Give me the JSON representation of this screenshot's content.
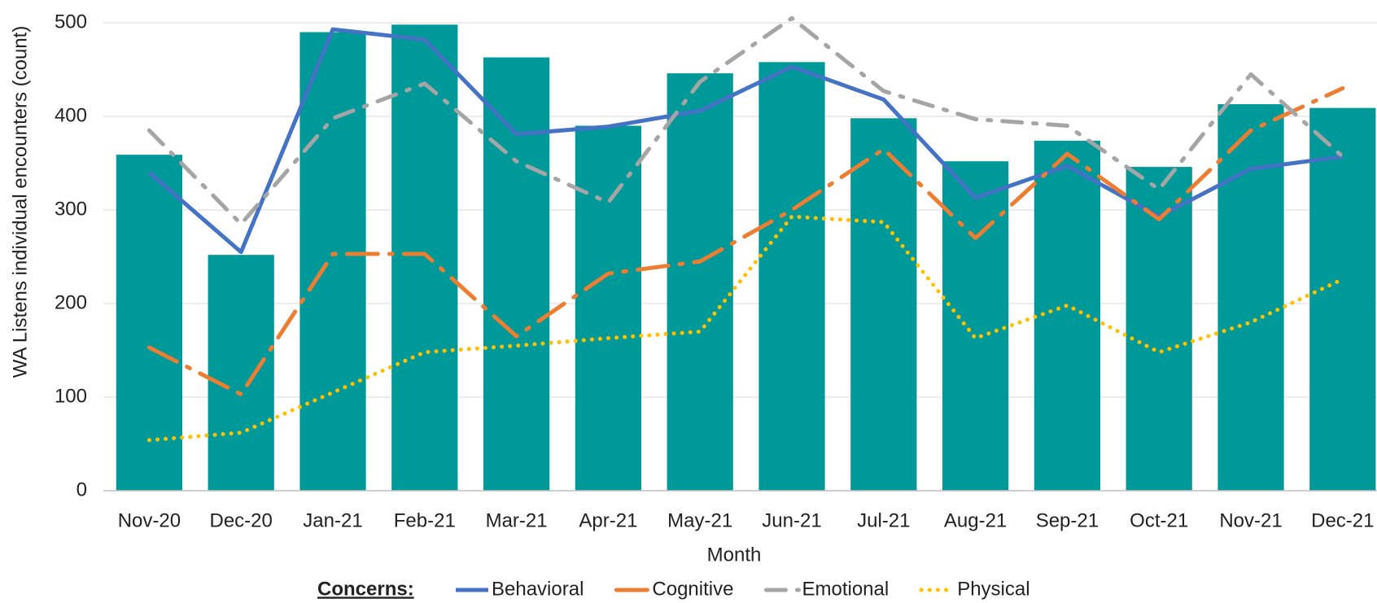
{
  "chart_data": {
    "type": "bar-line",
    "y_label": "WA Listens individual encounters  (count)",
    "x_label": "Month",
    "legend_title": "Concerns:",
    "categories": [
      "Nov-20",
      "Dec-20",
      "Jan-21",
      "Feb-21",
      "Mar-21",
      "Apr-21",
      "May-21",
      "Jun-21",
      "Jul-21",
      "Aug-21",
      "Sep-21",
      "Oct-21",
      "Nov-21",
      "Dec-21"
    ],
    "bars": {
      "color": "#009999",
      "values": [
        359,
        252,
        490,
        498,
        463,
        390,
        446,
        458,
        398,
        352,
        374,
        346,
        413,
        409
      ]
    },
    "series": [
      {
        "name": "Behavioral",
        "color": "#4472c4",
        "dash": "solid",
        "values": [
          340,
          255,
          493,
          482,
          381,
          389,
          406,
          453,
          418,
          313,
          347,
          293,
          344,
          357
        ]
      },
      {
        "name": "Cognitive",
        "color": "#ed7d31",
        "dash": "long-dash-dot",
        "values": [
          153,
          103,
          253,
          253,
          165,
          232,
          245,
          300,
          365,
          270,
          360,
          290,
          385,
          430
        ]
      },
      {
        "name": "Emotional",
        "color": "#a5a5a5",
        "dash": "dash-dot",
        "values": [
          385,
          285,
          398,
          435,
          352,
          308,
          437,
          505,
          427,
          397,
          390,
          322,
          445,
          357
        ]
      },
      {
        "name": "Physical",
        "color": "#ffc000",
        "dash": "dot",
        "values": [
          54,
          62,
          105,
          148,
          155,
          163,
          170,
          293,
          287,
          163,
          198,
          148,
          180,
          226
        ]
      }
    ],
    "ylim": [
      0,
      500
    ],
    "yticks": [
      0,
      100,
      200,
      300,
      400,
      500
    ],
    "grid": true
  }
}
